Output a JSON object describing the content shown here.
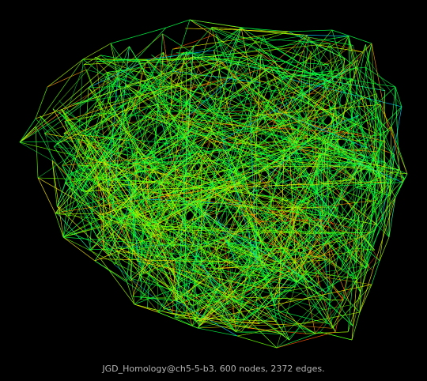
{
  "caption": "JGD_Homology@ch5-5-b3. 600 nodes, 2372 edges.",
  "graph": {
    "nodes": 600,
    "edges": 2372,
    "background": "#000000",
    "edge_colors": [
      "#00ff44",
      "#66ff00",
      "#aaff00",
      "#ffee00",
      "#ff9900",
      "#ff5500",
      "#00ccff",
      "#22ffaa"
    ]
  }
}
